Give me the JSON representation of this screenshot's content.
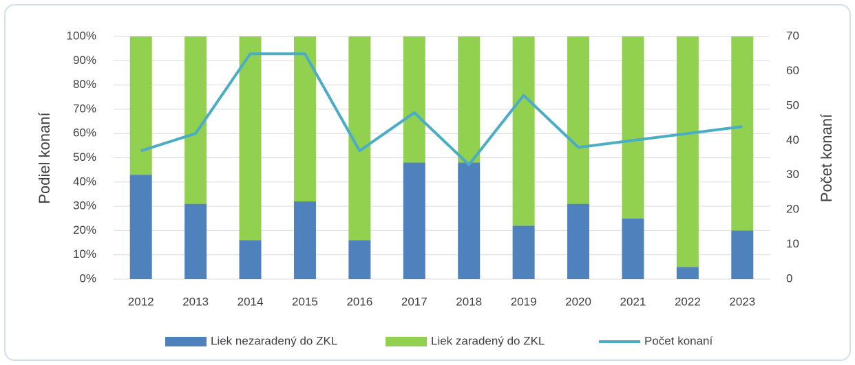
{
  "chart_data": {
    "type": "bar",
    "stacked": true,
    "categories": [
      "2012",
      "2013",
      "2014",
      "2015",
      "2016",
      "2017",
      "2018",
      "2019",
      "2020",
      "2021",
      "2022",
      "2023"
    ],
    "series": [
      {
        "name": "Liek nezaradený do ZKL",
        "type": "bar",
        "color": "#4f81bd",
        "values": [
          43,
          31,
          16,
          32,
          16,
          48,
          48,
          22,
          31,
          25,
          5,
          20
        ]
      },
      {
        "name": "Liek zaradený do ZKL",
        "type": "bar",
        "color": "#92d050",
        "values": [
          57,
          69,
          84,
          68,
          84,
          52,
          52,
          78,
          69,
          75,
          95,
          80
        ]
      },
      {
        "name": "Počet konaní",
        "type": "line",
        "axis": "y2",
        "color": "#4bacc6",
        "values": [
          37,
          42,
          65,
          65,
          37,
          48,
          33,
          53,
          38,
          40,
          42,
          44
        ]
      }
    ],
    "ylabel": "Podiel konaní",
    "y2label": "Počet konaní",
    "ylim": [
      0,
      100
    ],
    "yticks": [
      {
        "value": 0,
        "label": "0%"
      },
      {
        "value": 10,
        "label": "10%"
      },
      {
        "value": 20,
        "label": "20%"
      },
      {
        "value": 30,
        "label": "30%"
      },
      {
        "value": 40,
        "label": "40%"
      },
      {
        "value": 50,
        "label": "50%"
      },
      {
        "value": 60,
        "label": "60%"
      },
      {
        "value": 70,
        "label": "70%"
      },
      {
        "value": 80,
        "label": "80%"
      },
      {
        "value": 90,
        "label": "90%"
      },
      {
        "value": 100,
        "label": "100%"
      }
    ],
    "y2lim": [
      0,
      70
    ],
    "y2ticks": [
      0,
      10,
      20,
      30,
      40,
      50,
      60,
      70
    ],
    "grid": true,
    "legend": "bottom"
  }
}
